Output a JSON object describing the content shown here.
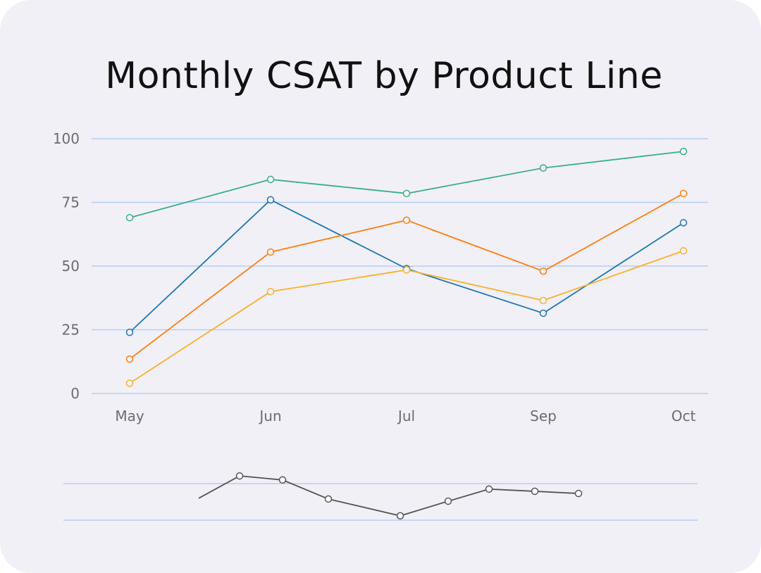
{
  "chart_data": [
    {
      "type": "line",
      "title": "Monthly CSAT by Product Line",
      "xlabel": "",
      "ylabel": "",
      "categories": [
        "May",
        "Jun",
        "Jul",
        "Sep",
        "Oct"
      ],
      "ylim": [
        0,
        100
      ],
      "yticks": [
        "0",
        "25",
        "50",
        "75",
        "100"
      ],
      "grid": true,
      "legend": "none",
      "series": [
        {
          "color": "#3aae8a",
          "values": [
            69,
            84,
            78.5,
            88.5,
            95
          ]
        },
        {
          "color": "#1f77b4",
          "values": [
            24,
            76,
            49,
            31.5,
            67
          ]
        },
        {
          "color": "#ff7f0e",
          "values": [
            13.5,
            55.5,
            68,
            48,
            78.5
          ]
        },
        {
          "color": "#fbb02a",
          "values": [
            4,
            40,
            48.5,
            36.5,
            56
          ]
        }
      ]
    },
    {
      "type": "line",
      "title": "",
      "grid": true,
      "series": [
        {
          "color": "#555555",
          "values": [
            0.6,
            1.21,
            1.1,
            0.58,
            0.12,
            0.52,
            0.85,
            0.79,
            0.73
          ]
        }
      ]
    }
  ]
}
